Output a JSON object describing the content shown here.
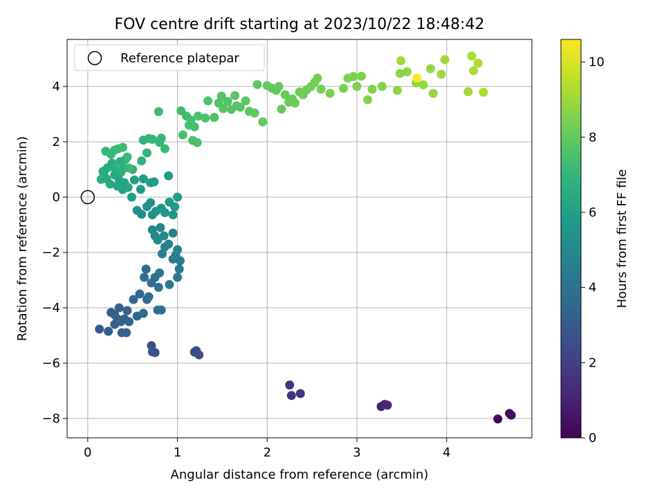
{
  "chart_data": {
    "type": "scatter",
    "title": "FOV centre drift starting at 2023/10/22 18:48:42",
    "xlabel": "Angular distance from reference (arcmin)",
    "ylabel": "Rotation from reference (arcmin)",
    "xlim": [
      -0.23,
      4.95
    ],
    "ylim": [
      -8.7,
      5.7
    ],
    "xticks": [
      0,
      1,
      2,
      3,
      4
    ],
    "yticks": [
      -8,
      -6,
      -4,
      -2,
      0,
      2,
      4
    ],
    "grid": true,
    "legend": {
      "position": "top-left",
      "entries": [
        "Reference platepar"
      ]
    },
    "reference_point": {
      "x": 0,
      "y": 0
    },
    "colorbar": {
      "label": "Hours from first FF file",
      "range": [
        0,
        10.6
      ],
      "ticks": [
        0,
        2,
        4,
        6,
        8,
        10
      ],
      "colormap": "viridis"
    },
    "colormap_stops": [
      "#440154",
      "#482878",
      "#3e4989",
      "#31688e",
      "#26828e",
      "#1f9e89",
      "#35b779",
      "#6ece58",
      "#b5de2b",
      "#fde725"
    ],
    "marker_color": "hour-colormap",
    "series": [
      {
        "points": [
          [
            4.57,
            -8.02,
            0.1
          ],
          [
            4.7,
            -7.82,
            0.2
          ],
          [
            4.72,
            -7.88,
            0.3
          ],
          [
            3.27,
            -7.57,
            1.0
          ],
          [
            3.31,
            -7.49,
            1.1
          ],
          [
            3.34,
            -7.52,
            1.2
          ],
          [
            2.25,
            -6.79,
            1.5
          ],
          [
            2.27,
            -7.17,
            1.6
          ],
          [
            2.37,
            -7.1,
            1.7
          ],
          [
            1.19,
            -5.6,
            2.4
          ],
          [
            1.21,
            -5.55,
            2.5
          ],
          [
            1.24,
            -5.7,
            2.5
          ],
          [
            0.71,
            -5.37,
            2.6
          ],
          [
            0.72,
            -5.59,
            2.7
          ],
          [
            0.75,
            -5.62,
            2.7
          ],
          [
            0.13,
            -4.77,
            3.0
          ],
          [
            0.23,
            -4.85,
            3.1
          ],
          [
            0.26,
            -4.17,
            3.1
          ],
          [
            0.3,
            -4.25,
            3.2
          ],
          [
            0.3,
            -4.6,
            3.2
          ],
          [
            0.33,
            -4.4,
            3.2
          ],
          [
            0.35,
            -4.0,
            3.3
          ],
          [
            0.37,
            -4.5,
            3.3
          ],
          [
            0.38,
            -4.9,
            3.3
          ],
          [
            0.41,
            -4.4,
            3.3
          ],
          [
            0.43,
            -4.9,
            3.3
          ],
          [
            0.44,
            -4.1,
            3.4
          ],
          [
            0.46,
            -4.5,
            3.4
          ],
          [
            0.51,
            -3.7,
            3.5
          ],
          [
            0.55,
            -4.3,
            3.5
          ],
          [
            0.58,
            -3.5,
            3.6
          ],
          [
            0.62,
            -4.2,
            3.6
          ],
          [
            0.63,
            -2.9,
            3.7
          ],
          [
            0.65,
            -2.6,
            3.7
          ],
          [
            0.66,
            -3.7,
            3.7
          ],
          [
            0.68,
            -3.6,
            3.8
          ],
          [
            0.71,
            -3.1,
            3.8
          ],
          [
            0.75,
            -2.9,
            3.9
          ],
          [
            0.78,
            -4.08,
            3.9
          ],
          [
            0.82,
            -4.08,
            4.0
          ],
          [
            0.79,
            -3.26,
            4.0
          ],
          [
            0.8,
            -2.74,
            4.1
          ],
          [
            0.91,
            -3.16,
            4.2
          ],
          [
            0.95,
            -2.24,
            4.3
          ],
          [
            1.0,
            -2.9,
            4.3
          ],
          [
            1.02,
            -2.6,
            4.4
          ],
          [
            1.03,
            -2.3,
            4.4
          ],
          [
            0.83,
            -2.05,
            4.5
          ],
          [
            0.86,
            -1.8,
            4.6
          ],
          [
            0.9,
            -1.7,
            4.6
          ],
          [
            0.95,
            -1.3,
            4.7
          ],
          [
            0.98,
            -2.1,
            4.7
          ],
          [
            1.0,
            -1.9,
            4.8
          ],
          [
            0.72,
            -1.18,
            4.9
          ],
          [
            0.75,
            -1.4,
            4.9
          ],
          [
            0.78,
            -1.55,
            5.0
          ],
          [
            0.81,
            -1.1,
            5.0
          ],
          [
            0.85,
            -1.4,
            5.1
          ],
          [
            0.55,
            -0.48,
            5.2
          ],
          [
            0.6,
            -0.62,
            5.2
          ],
          [
            0.66,
            -0.34,
            5.3
          ],
          [
            0.7,
            -0.2,
            5.3
          ],
          [
            0.72,
            -0.64,
            5.4
          ],
          [
            0.76,
            -0.51,
            5.4
          ],
          [
            0.82,
            -0.4,
            5.5
          ],
          [
            0.86,
            -0.56,
            5.5
          ],
          [
            0.91,
            -0.18,
            5.6
          ],
          [
            0.95,
            -0.64,
            5.6
          ],
          [
            0.97,
            -0.35,
            5.7
          ],
          [
            1.0,
            0.0,
            5.7
          ],
          [
            0.9,
            0.77,
            5.8
          ],
          [
            0.59,
            0.28,
            5.8
          ],
          [
            0.62,
            0.66,
            5.9
          ],
          [
            0.7,
            0.52,
            5.9
          ],
          [
            0.74,
            0.55,
            5.9
          ],
          [
            0.49,
            0.0,
            6.0
          ],
          [
            0.52,
            0.62,
            6.0
          ],
          [
            0.39,
            0.27,
            6.1
          ],
          [
            0.41,
            0.52,
            6.1
          ],
          [
            0.45,
            0.35,
            6.2
          ],
          [
            0.35,
            0.62,
            6.2
          ],
          [
            0.33,
            0.4,
            6.3
          ],
          [
            0.3,
            0.8,
            6.3
          ],
          [
            0.25,
            0.47,
            6.4
          ],
          [
            0.21,
            0.66,
            6.4
          ],
          [
            0.18,
            0.85,
            6.4
          ],
          [
            0.15,
            0.64,
            6.5
          ],
          [
            0.17,
            0.93,
            6.5
          ],
          [
            0.22,
            1.06,
            6.5
          ],
          [
            0.27,
            1.23,
            6.6
          ],
          [
            0.31,
            1.0,
            6.6
          ],
          [
            0.36,
            1.28,
            6.6
          ],
          [
            0.4,
            1.05,
            6.7
          ],
          [
            0.42,
            1.36,
            6.7
          ],
          [
            0.37,
            0.9,
            6.7
          ],
          [
            0.5,
            1.0,
            6.8
          ],
          [
            0.6,
            1.31,
            6.8
          ],
          [
            0.66,
            1.6,
            6.9
          ],
          [
            0.62,
            2.06,
            6.9
          ],
          [
            0.68,
            2.12,
            6.9
          ],
          [
            0.72,
            2.09,
            7.0
          ],
          [
            0.82,
            2.13,
            7.0
          ],
          [
            0.8,
            1.98,
            7.0
          ],
          [
            0.86,
            1.75,
            7.1
          ],
          [
            0.2,
            1.66,
            7.1
          ],
          [
            0.26,
            1.55,
            7.1
          ],
          [
            0.3,
            1.7,
            7.1
          ],
          [
            0.34,
            1.75,
            7.2
          ],
          [
            0.39,
            1.8,
            7.2
          ],
          [
            0.44,
            1.45,
            7.2
          ],
          [
            0.46,
            1.05,
            7.2
          ],
          [
            0.79,
            3.09,
            7.3
          ],
          [
            1.04,
            3.12,
            7.3
          ],
          [
            1.1,
            2.93,
            7.3
          ],
          [
            1.15,
            2.78,
            7.4
          ],
          [
            1.13,
            2.6,
            7.4
          ],
          [
            1.19,
            2.54,
            7.4
          ],
          [
            1.23,
            2.93,
            7.5
          ],
          [
            1.06,
            2.25,
            7.5
          ],
          [
            1.17,
            2.05,
            7.5
          ],
          [
            1.22,
            1.97,
            7.5
          ],
          [
            1.31,
            2.86,
            7.6
          ],
          [
            1.34,
            3.48,
            7.6
          ],
          [
            1.41,
            2.88,
            7.6
          ],
          [
            1.46,
            3.4,
            7.7
          ],
          [
            1.49,
            3.65,
            7.7
          ],
          [
            1.51,
            3.2,
            7.7
          ],
          [
            1.56,
            3.46,
            7.7
          ],
          [
            1.6,
            3.17,
            7.8
          ],
          [
            1.64,
            3.67,
            7.8
          ],
          [
            1.66,
            3.3,
            7.8
          ],
          [
            1.7,
            3.25,
            7.8
          ],
          [
            1.76,
            3.48,
            7.9
          ],
          [
            1.8,
            3.1,
            7.9
          ],
          [
            1.86,
            3.04,
            7.9
          ],
          [
            1.89,
            4.07,
            7.9
          ],
          [
            1.95,
            2.72,
            8.0
          ],
          [
            2.0,
            4.03,
            8.0
          ],
          [
            2.05,
            3.94,
            8.0
          ],
          [
            2.1,
            3.86,
            8.0
          ],
          [
            2.13,
            4.0,
            8.0
          ],
          [
            2.16,
            3.18,
            8.1
          ],
          [
            2.2,
            3.7,
            8.1
          ],
          [
            2.24,
            3.43,
            8.1
          ],
          [
            2.28,
            3.55,
            8.1
          ],
          [
            2.31,
            3.4,
            8.2
          ],
          [
            2.36,
            3.8,
            8.2
          ],
          [
            2.4,
            3.7,
            8.2
          ],
          [
            2.44,
            3.88,
            8.2
          ],
          [
            2.49,
            4.0,
            8.3
          ],
          [
            2.53,
            4.15,
            8.3
          ],
          [
            2.56,
            4.3,
            8.3
          ],
          [
            2.6,
            3.9,
            8.3
          ],
          [
            2.7,
            3.75,
            8.4
          ],
          [
            2.85,
            3.93,
            8.4
          ],
          [
            2.9,
            4.3,
            8.4
          ],
          [
            2.96,
            4.36,
            8.5
          ],
          [
            3.0,
            4.0,
            8.5
          ],
          [
            3.05,
            4.37,
            8.5
          ],
          [
            3.12,
            3.52,
            8.6
          ],
          [
            3.17,
            3.9,
            8.6
          ],
          [
            3.28,
            4.0,
            8.6
          ],
          [
            3.45,
            3.86,
            8.7
          ],
          [
            3.48,
            4.47,
            8.7
          ],
          [
            3.56,
            4.53,
            8.8
          ],
          [
            3.66,
            4.13,
            8.8
          ],
          [
            3.74,
            4.06,
            8.9
          ],
          [
            3.82,
            4.64,
            8.9
          ],
          [
            3.85,
            3.75,
            8.9
          ],
          [
            3.94,
            4.44,
            9.0
          ],
          [
            3.98,
            4.97,
            9.0
          ],
          [
            3.49,
            4.93,
            9.1
          ],
          [
            4.24,
            3.81,
            9.1
          ],
          [
            4.28,
            5.1,
            9.2
          ],
          [
            4.3,
            4.57,
            9.2
          ],
          [
            4.35,
            4.84,
            9.3
          ],
          [
            4.41,
            3.79,
            9.3
          ],
          [
            3.67,
            4.3,
            10.6
          ]
        ]
      }
    ]
  }
}
